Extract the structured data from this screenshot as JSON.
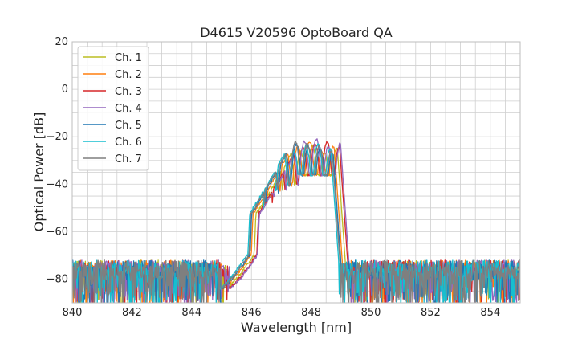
{
  "chart_data": {
    "type": "line",
    "title": "D4615 V20596 OptoBoard QA",
    "xlabel": "Wavelength [nm]",
    "ylabel": "Optical Power [dB]",
    "xlim": [
      840,
      855
    ],
    "ylim": [
      -90,
      20
    ],
    "xticks": [
      840,
      842,
      844,
      846,
      848,
      850,
      852,
      854
    ],
    "yticks": [
      20,
      0,
      -20,
      -40,
      -60,
      -80
    ],
    "grid": true,
    "legend_position": "top-left",
    "series": [
      {
        "name": "Ch. 1",
        "color": "#bcbd22",
        "shift": 0.1,
        "peaks": [
          -23,
          -25,
          -22,
          -26,
          -24,
          -27,
          -25
        ]
      },
      {
        "name": "Ch. 2",
        "color": "#ff7f0e",
        "shift": 0.0,
        "peaks": [
          -24,
          -23,
          -25,
          -24,
          -22,
          -26,
          -24
        ]
      },
      {
        "name": "Ch. 3",
        "color": "#d62728",
        "shift": 0.18,
        "peaks": [
          -25,
          -24,
          -23,
          -25,
          -23,
          -22,
          -24
        ]
      },
      {
        "name": "Ch. 4",
        "color": "#9467bd",
        "shift": 0.22,
        "peaks": [
          -22,
          -24,
          -23,
          -22,
          -21,
          -24,
          -23
        ]
      },
      {
        "name": "Ch. 5",
        "color": "#1f77b4",
        "shift": -0.05,
        "peaks": [
          -26,
          -24,
          -25,
          -23,
          -24,
          -25,
          -27
        ]
      },
      {
        "name": "Ch. 6",
        "color": "#17becf",
        "shift": -0.12,
        "peaks": [
          -27,
          -25,
          -24,
          -26,
          -24,
          -23,
          -25
        ]
      },
      {
        "name": "Ch. 7",
        "color": "#7f7f7f",
        "shift": -0.08,
        "peaks": [
          -25,
          -23,
          -24,
          -22,
          -23,
          -24,
          -26
        ]
      }
    ]
  }
}
